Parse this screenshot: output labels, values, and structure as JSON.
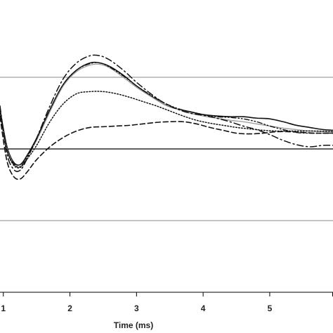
{
  "chart_data": {
    "type": "line",
    "title": "",
    "xlabel": "Time (ms)",
    "ylabel": "",
    "xlim": [
      0.95,
      5.95
    ],
    "ylim": [
      -2,
      2
    ],
    "x_ticks": [
      "1",
      "2",
      "3",
      "4",
      "5"
    ],
    "x_tick_values": [
      1,
      2,
      3,
      4,
      5
    ],
    "gridlines_y": [
      -1,
      0,
      1
    ],
    "grid": true,
    "legend": "none",
    "series": [
      {
        "style": "solid",
        "color": "#111111",
        "x": [
          0.95,
          1.05,
          1.15,
          1.25,
          1.35,
          1.5,
          1.7,
          1.9,
          2.1,
          2.3,
          2.45,
          2.6,
          2.8,
          3.0,
          3.2,
          3.4,
          3.6,
          3.8,
          4.0,
          4.2,
          4.4,
          4.6,
          4.8,
          5.0,
          5.2,
          5.4,
          5.6,
          5.8,
          5.95
        ],
        "y": [
          0.55,
          0.05,
          -0.18,
          -0.22,
          -0.1,
          0.15,
          0.55,
          0.9,
          1.1,
          1.2,
          1.2,
          1.15,
          1.03,
          0.88,
          0.75,
          0.63,
          0.56,
          0.52,
          0.48,
          0.46,
          0.45,
          0.45,
          0.43,
          0.42,
          0.38,
          0.33,
          0.3,
          0.27,
          0.26
        ]
      },
      {
        "style": "solid-gray",
        "color": "#9a9a9a",
        "x": [
          0.95,
          1.05,
          1.15,
          1.25,
          1.35,
          1.5,
          1.7,
          1.9,
          2.1,
          2.3,
          2.45,
          2.6,
          2.8,
          3.0,
          3.2,
          3.4,
          3.6,
          3.8,
          4.0,
          4.2,
          4.4,
          4.6,
          4.8,
          5.0,
          5.2,
          5.4,
          5.6,
          5.8,
          5.95
        ],
        "y": [
          0.5,
          0.02,
          -0.2,
          -0.25,
          -0.12,
          0.12,
          0.52,
          0.88,
          1.08,
          1.17,
          1.18,
          1.13,
          1.0,
          0.86,
          0.74,
          0.63,
          0.56,
          0.5,
          0.46,
          0.43,
          0.4,
          0.38,
          0.35,
          0.32,
          0.29,
          0.27,
          0.25,
          0.24,
          0.24
        ]
      },
      {
        "style": "dash-dot",
        "color": "#111111",
        "x": [
          0.95,
          1.05,
          1.15,
          1.25,
          1.35,
          1.5,
          1.7,
          1.9,
          2.1,
          2.3,
          2.45,
          2.6,
          2.8,
          3.0,
          3.2,
          3.4,
          3.6,
          3.8,
          4.0,
          4.2,
          4.4,
          4.6,
          4.8,
          5.0,
          5.2,
          5.4,
          5.6,
          5.8,
          5.95
        ],
        "y": [
          0.6,
          -0.05,
          -0.28,
          -0.3,
          -0.15,
          0.15,
          0.6,
          0.98,
          1.2,
          1.3,
          1.3,
          1.24,
          1.1,
          0.93,
          0.78,
          0.65,
          0.56,
          0.5,
          0.47,
          0.43,
          0.38,
          0.32,
          0.27,
          0.2,
          0.12,
          0.06,
          0.03,
          0.05,
          0.05
        ]
      },
      {
        "style": "dotted",
        "color": "#111111",
        "x": [
          0.95,
          1.05,
          1.15,
          1.25,
          1.35,
          1.5,
          1.7,
          1.9,
          2.1,
          2.3,
          2.5,
          2.7,
          2.9,
          3.1,
          3.3,
          3.5,
          3.7,
          3.9,
          4.1,
          4.3,
          4.5,
          4.7,
          4.9,
          5.1,
          5.3,
          5.5,
          5.7,
          5.95
        ],
        "y": [
          0.5,
          0.0,
          -0.22,
          -0.26,
          -0.15,
          0.05,
          0.38,
          0.63,
          0.77,
          0.8,
          0.8,
          0.77,
          0.72,
          0.66,
          0.6,
          0.53,
          0.46,
          0.4,
          0.36,
          0.33,
          0.3,
          0.28,
          0.26,
          0.25,
          0.25,
          0.25,
          0.25,
          0.24
        ]
      },
      {
        "style": "dash-dot-dot",
        "color": "#111111",
        "x": [
          0.95,
          1.05,
          1.15,
          1.25,
          1.35,
          1.5,
          1.7,
          1.9,
          2.1,
          2.3,
          2.45,
          2.6,
          2.8,
          3.0,
          3.2,
          3.4,
          3.6,
          3.8,
          4.0,
          4.2,
          4.4,
          4.6,
          4.8,
          5.0,
          5.2,
          5.4,
          5.6,
          5.8,
          5.95
        ],
        "y": [
          0.55,
          0.0,
          -0.2,
          -0.25,
          -0.12,
          0.14,
          0.55,
          0.9,
          1.1,
          1.19,
          1.2,
          1.14,
          1.02,
          0.88,
          0.76,
          0.65,
          0.57,
          0.52,
          0.48,
          0.45,
          0.44,
          0.42,
          0.38,
          0.32,
          0.27,
          0.23,
          0.22,
          0.22,
          0.22
        ]
      },
      {
        "style": "dashed",
        "color": "#111111",
        "x": [
          0.95,
          1.05,
          1.15,
          1.25,
          1.35,
          1.5,
          1.7,
          1.9,
          2.1,
          2.3,
          2.5,
          2.7,
          2.9,
          3.1,
          3.3,
          3.5,
          3.7,
          3.9,
          4.1,
          4.3,
          4.5,
          4.7,
          4.9,
          5.1,
          5.3,
          5.5,
          5.7,
          5.95
        ],
        "y": [
          0.45,
          -0.15,
          -0.38,
          -0.42,
          -0.33,
          -0.15,
          0.03,
          0.16,
          0.25,
          0.3,
          0.31,
          0.32,
          0.33,
          0.35,
          0.37,
          0.38,
          0.38,
          0.35,
          0.3,
          0.26,
          0.22,
          0.21,
          0.22,
          0.24,
          0.24,
          0.23,
          0.22,
          0.22
        ]
      }
    ]
  }
}
